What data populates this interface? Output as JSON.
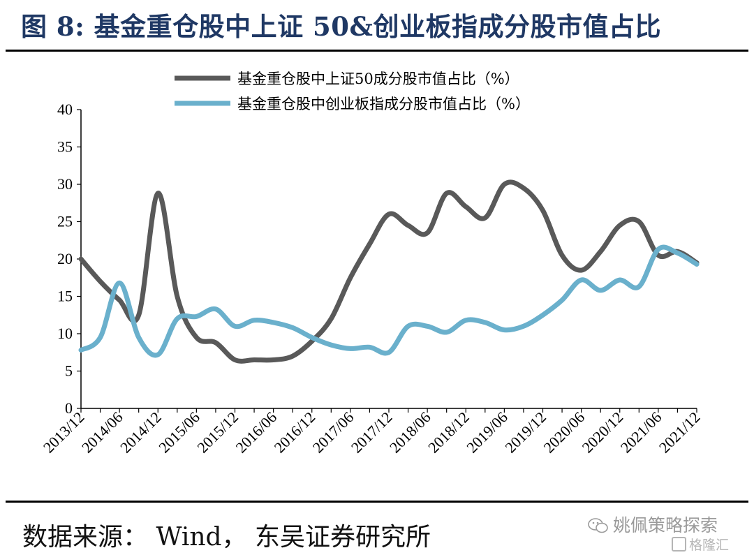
{
  "header": {
    "title": "图 8: 基金重仓股中上证 50&创业板指成分股市值占比"
  },
  "footer": {
    "source": "数据来源： Wind， 东吴证券研究所"
  },
  "watermark": {
    "account": "姚佩策略探索",
    "site": "格隆汇",
    "icon": "wechat-icon"
  },
  "colors": {
    "series_sz50": "#595959",
    "series_cyb": "#6ab0cc",
    "title": "#1f3864",
    "axis": "#000000"
  },
  "chart_data": {
    "type": "line",
    "title": "",
    "xlabel": "",
    "ylabel": "",
    "ylim": [
      0,
      40
    ],
    "yticks": [
      "0",
      "5",
      "10",
      "15",
      "20",
      "25",
      "30",
      "35",
      "40"
    ],
    "categories": [
      "2013/12",
      "2014/03",
      "2014/06",
      "2014/09",
      "2014/12",
      "2015/03",
      "2015/06",
      "2015/09",
      "2015/12",
      "2016/03",
      "2016/06",
      "2016/09",
      "2016/12",
      "2017/03",
      "2017/06",
      "2017/09",
      "2017/12",
      "2018/03",
      "2018/06",
      "2018/09",
      "2018/12",
      "2019/03",
      "2019/06",
      "2019/09",
      "2019/12",
      "2020/03",
      "2020/06",
      "2020/09",
      "2020/12",
      "2021/03",
      "2021/06",
      "2021/09",
      "2021/12"
    ],
    "xticks": [
      "2013/12",
      "2014/06",
      "2014/12",
      "2015/06",
      "2015/12",
      "2016/06",
      "2016/12",
      "2017/06",
      "2017/12",
      "2018/06",
      "2018/12",
      "2019/06",
      "2019/12",
      "2020/06",
      "2020/12",
      "2021/06",
      "2021/12"
    ],
    "grid": false,
    "legend_position": "top",
    "series": [
      {
        "name": "基金重仓股中上证50成分股市值占比（%）",
        "color": "#595959",
        "values": [
          20,
          17,
          14.5,
          12.5,
          28.8,
          15,
          9.5,
          8.8,
          6.5,
          6.5,
          6.5,
          7,
          9,
          12,
          17.5,
          22,
          26,
          24.5,
          23.5,
          28.8,
          27,
          25.5,
          30,
          29.5,
          26.5,
          20.5,
          18.5,
          21,
          24.5,
          25,
          20.5,
          21,
          19.5
        ]
      },
      {
        "name": "基金重仓股中创业板指成分股市值占比（%）",
        "color": "#6ab0cc",
        "values": [
          7.8,
          9.5,
          16.8,
          9.5,
          7.2,
          12,
          12.3,
          13.3,
          11,
          11.8,
          11.5,
          10.8,
          9.5,
          8.5,
          8,
          8.2,
          7.5,
          11,
          11,
          10.2,
          11.8,
          11.5,
          10.5,
          11,
          12.5,
          14.5,
          17.2,
          15.8,
          17.2,
          16.3,
          21.3,
          20.8,
          19.3
        ]
      }
    ]
  }
}
